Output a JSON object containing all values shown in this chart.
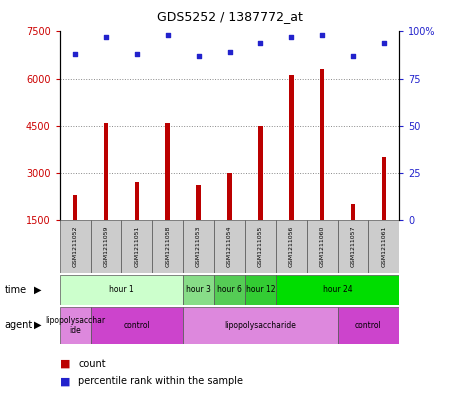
{
  "title": "GDS5252 / 1387772_at",
  "samples": [
    "GSM1211052",
    "GSM1211059",
    "GSM1211051",
    "GSM1211058",
    "GSM1211053",
    "GSM1211054",
    "GSM1211055",
    "GSM1211056",
    "GSM1211060",
    "GSM1211057",
    "GSM1211061"
  ],
  "counts": [
    2300,
    4600,
    2700,
    4600,
    2600,
    3000,
    4500,
    6100,
    6300,
    2000,
    3500
  ],
  "percentile_ranks": [
    88,
    97,
    88,
    98,
    87,
    89,
    94,
    97,
    98,
    87,
    94
  ],
  "ylim_left": [
    1500,
    7500
  ],
  "ylim_right": [
    0,
    100
  ],
  "yticks_left": [
    1500,
    3000,
    4500,
    6000,
    7500
  ],
  "yticks_right": [
    0,
    25,
    50,
    75,
    100
  ],
  "bar_color": "#bb0000",
  "dot_color": "#2222cc",
  "time_row": [
    {
      "label": "hour 1",
      "start": 0,
      "end": 4,
      "color": "#ccffcc"
    },
    {
      "label": "hour 3",
      "start": 4,
      "end": 5,
      "color": "#88dd88"
    },
    {
      "label": "hour 6",
      "start": 5,
      "end": 6,
      "color": "#55cc55"
    },
    {
      "label": "hour 12",
      "start": 6,
      "end": 7,
      "color": "#33cc33"
    },
    {
      "label": "hour 24",
      "start": 7,
      "end": 11,
      "color": "#00dd00"
    }
  ],
  "agent_row": [
    {
      "label": "lipopolysacchar\nide",
      "start": 0,
      "end": 1,
      "color": "#dd88dd"
    },
    {
      "label": "control",
      "start": 1,
      "end": 4,
      "color": "#cc44cc"
    },
    {
      "label": "lipopolysaccharide",
      "start": 4,
      "end": 9,
      "color": "#dd88dd"
    },
    {
      "label": "control",
      "start": 9,
      "end": 11,
      "color": "#cc44cc"
    }
  ],
  "bg_color": "#ffffff",
  "grid_color": "#888888",
  "sample_box_color": "#cccccc",
  "tick_label_color_left": "#cc0000",
  "tick_label_color_right": "#2222cc",
  "bar_width": 0.15
}
